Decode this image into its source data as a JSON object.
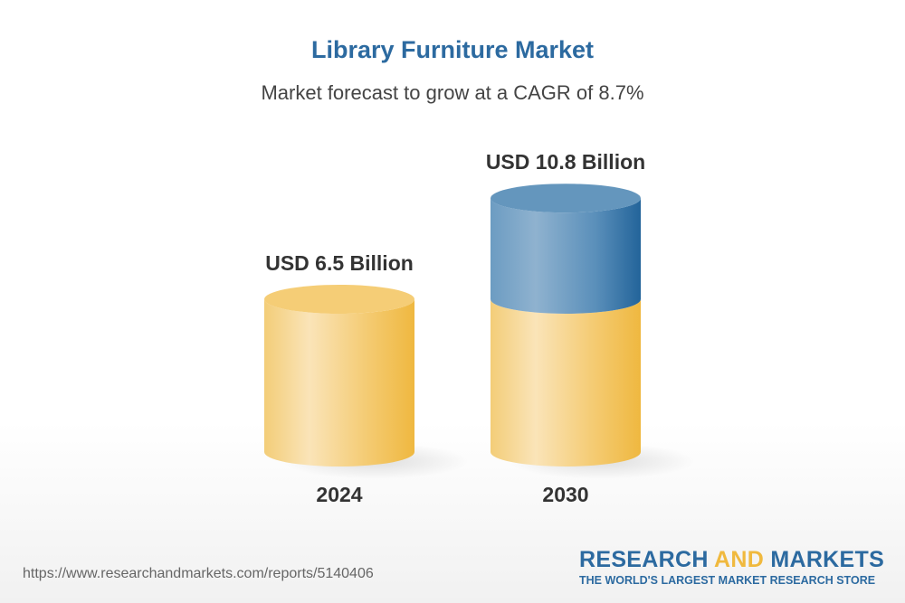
{
  "chart_data": {
    "type": "bar",
    "title": "Library Furniture Market",
    "subtitle": "Market forecast to grow at a CAGR of 8.7%",
    "categories": [
      "2024",
      "2030"
    ],
    "values": [
      6.5,
      10.8
    ],
    "data_labels": [
      "USD 6.5 Billion",
      "USD 10.8 Billion"
    ],
    "unit": "USD Billion",
    "style": "3d-cylinder",
    "colors": {
      "base": "#f2c35a",
      "growth": "#2c6aa0"
    }
  },
  "footer": {
    "url": "https://www.researchandmarkets.com/reports/5140406",
    "logo_part1": "RESEARCH ",
    "logo_part2": "AND",
    "logo_part3": " MARKETS",
    "tagline": "THE WORLD'S LARGEST MARKET RESEARCH STORE"
  }
}
